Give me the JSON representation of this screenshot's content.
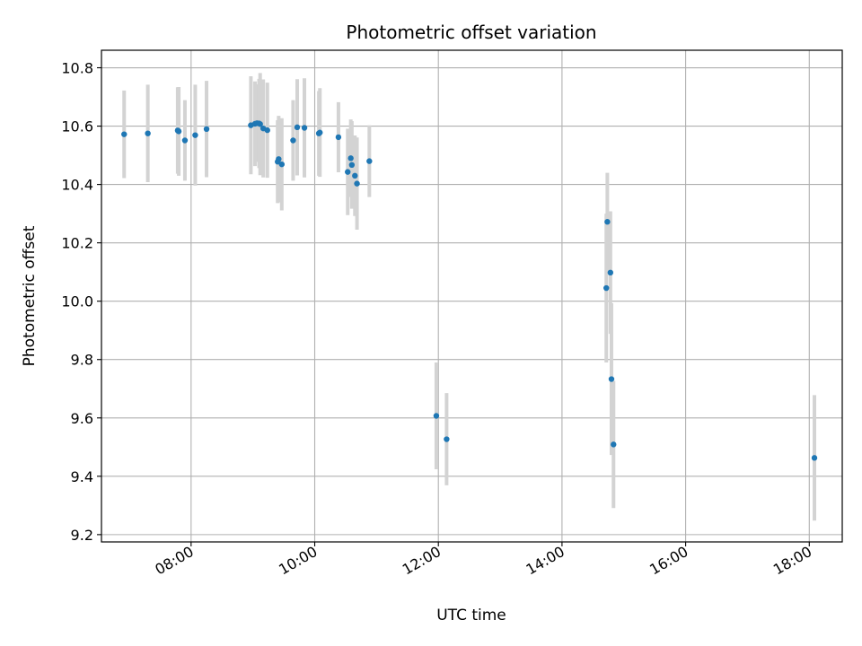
{
  "chart_data": {
    "type": "scatter",
    "title": "Photometric offset variation",
    "xlabel": "UTC time",
    "ylabel": "Photometric offset",
    "x_ticks": [
      "08:00",
      "10:00",
      "12:00",
      "14:00",
      "16:00",
      "18:00"
    ],
    "y_ticks": [
      "9.2",
      "9.4",
      "9.6",
      "9.8",
      "10.0",
      "10.2",
      "10.4",
      "10.6",
      "10.8"
    ],
    "xlim": [
      "06:33",
      "18:32"
    ],
    "ylim": [
      9.175,
      10.86
    ],
    "grid": true,
    "point_color": "#1f77b4",
    "errorbar_color": "#d3d3d3",
    "points": [
      {
        "t": "06:55",
        "y": 10.572,
        "err": 0.15
      },
      {
        "t": "07:18",
        "y": 10.575,
        "err": 0.167
      },
      {
        "t": "07:47",
        "y": 10.585,
        "err": 0.148
      },
      {
        "t": "07:48",
        "y": 10.582,
        "err": 0.152
      },
      {
        "t": "07:54",
        "y": 10.551,
        "err": 0.138
      },
      {
        "t": "08:04",
        "y": 10.569,
        "err": 0.173
      },
      {
        "t": "08:15",
        "y": 10.59,
        "err": 0.165
      },
      {
        "t": "08:58",
        "y": 10.603,
        "err": 0.168
      },
      {
        "t": "09:02",
        "y": 10.608,
        "err": 0.145
      },
      {
        "t": "09:04",
        "y": 10.61,
        "err": 0.133
      },
      {
        "t": "09:06",
        "y": 10.609,
        "err": 0.153
      },
      {
        "t": "09:07",
        "y": 10.607,
        "err": 0.175
      },
      {
        "t": "09:10",
        "y": 10.592,
        "err": 0.168
      },
      {
        "t": "09:14",
        "y": 10.586,
        "err": 0.163
      },
      {
        "t": "09:24",
        "y": 10.478,
        "err": 0.142
      },
      {
        "t": "09:25",
        "y": 10.487,
        "err": 0.148
      },
      {
        "t": "09:28",
        "y": 10.469,
        "err": 0.158
      },
      {
        "t": "09:39",
        "y": 10.551,
        "err": 0.138
      },
      {
        "t": "09:43",
        "y": 10.596,
        "err": 0.165
      },
      {
        "t": "09:50",
        "y": 10.594,
        "err": 0.17
      },
      {
        "t": "10:04",
        "y": 10.575,
        "err": 0.145
      },
      {
        "t": "10:05",
        "y": 10.578,
        "err": 0.152
      },
      {
        "t": "10:23",
        "y": 10.562,
        "err": 0.12
      },
      {
        "t": "10:32",
        "y": 10.443,
        "err": 0.148
      },
      {
        "t": "10:35",
        "y": 10.49,
        "err": 0.133
      },
      {
        "t": "10:36",
        "y": 10.467,
        "err": 0.15
      },
      {
        "t": "10:39",
        "y": 10.43,
        "err": 0.138
      },
      {
        "t": "10:41",
        "y": 10.403,
        "err": 0.158
      },
      {
        "t": "10:53",
        "y": 10.48,
        "err": 0.123
      },
      {
        "t": "11:58",
        "y": 9.607,
        "err": 0.183
      },
      {
        "t": "12:08",
        "y": 9.527,
        "err": 0.158
      },
      {
        "t": "14:43",
        "y": 10.045,
        "err": 0.255
      },
      {
        "t": "14:44",
        "y": 10.272,
        "err": 0.168
      },
      {
        "t": "14:47",
        "y": 10.098,
        "err": 0.21
      },
      {
        "t": "14:48",
        "y": 9.733,
        "err": 0.26
      },
      {
        "t": "14:50",
        "y": 9.509,
        "err": 0.218
      },
      {
        "t": "18:05",
        "y": 9.463,
        "err": 0.215
      }
    ]
  }
}
